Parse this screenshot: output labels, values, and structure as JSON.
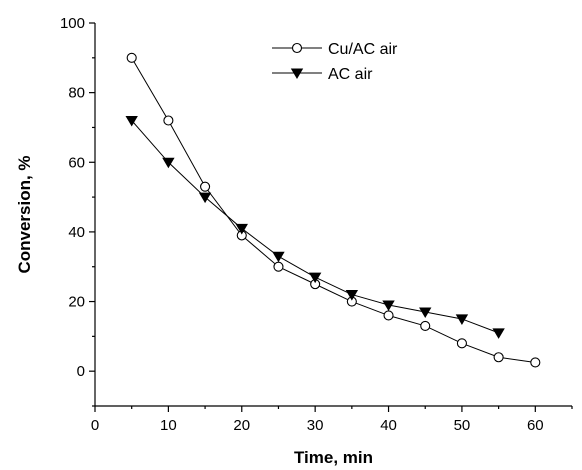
{
  "chart_data": {
    "type": "line",
    "xlabel": "Time, min",
    "ylabel": "Conversion, %",
    "xlim": [
      0,
      65
    ],
    "ylim": [
      -10,
      100
    ],
    "xticks": [
      0,
      10,
      20,
      30,
      40,
      50,
      60
    ],
    "yticks": [
      0,
      20,
      40,
      60,
      80,
      100
    ],
    "grid": false,
    "legend_position": "top-center",
    "series": [
      {
        "name": "Cu/AC air",
        "marker": "open-circle",
        "color": "#000000",
        "x": [
          5,
          10,
          15,
          20,
          25,
          30,
          35,
          40,
          45,
          50,
          55,
          60
        ],
        "y": [
          90,
          72,
          53,
          39,
          30,
          25,
          20,
          16,
          13,
          8,
          4,
          2.5
        ]
      },
      {
        "name": "AC air",
        "marker": "filled-down-triangle",
        "color": "#000000",
        "x": [
          5,
          10,
          15,
          20,
          25,
          30,
          35,
          40,
          45,
          50,
          55
        ],
        "y": [
          72,
          60,
          50,
          41,
          33,
          27,
          22,
          19,
          17,
          15,
          11
        ]
      }
    ]
  }
}
